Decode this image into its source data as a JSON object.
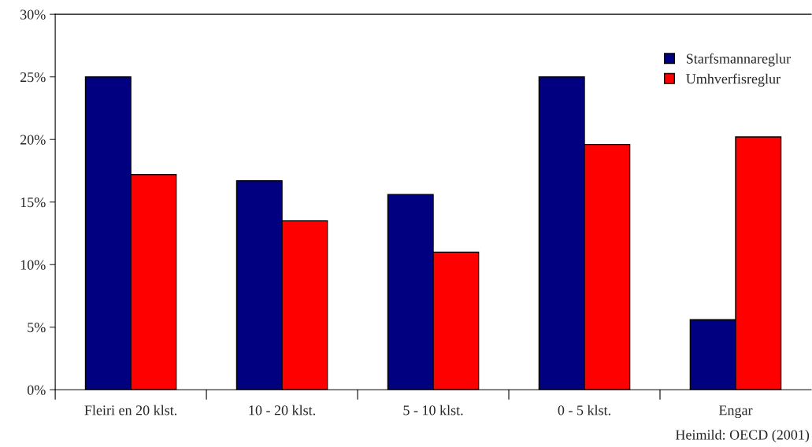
{
  "chart_data": {
    "type": "bar",
    "categories": [
      "Fleiri en 20 klst.",
      "10 - 20 klst.",
      "5 - 10 klst.",
      "0 - 5 klst.",
      "Engar"
    ],
    "series": [
      {
        "name": "Starfsmannareglur",
        "color": "#000080",
        "values": [
          25.0,
          16.7,
          15.6,
          25.0,
          5.6
        ]
      },
      {
        "name": "Umhverfisreglur",
        "color": "#ff0000",
        "values": [
          17.2,
          13.5,
          11.0,
          19.6,
          20.2
        ]
      }
    ],
    "ylim": [
      0,
      30
    ],
    "yticks": [
      {
        "value": 0,
        "label": "0%"
      },
      {
        "value": 5,
        "label": "5%"
      },
      {
        "value": 10,
        "label": "10%"
      },
      {
        "value": 15,
        "label": "15%"
      },
      {
        "value": 20,
        "label": "20%"
      },
      {
        "value": 25,
        "label": "25%"
      },
      {
        "value": 30,
        "label": "30%"
      }
    ],
    "legend": "top right",
    "grid": false,
    "annotations": [
      "Heimild: OECD (2001)"
    ]
  }
}
